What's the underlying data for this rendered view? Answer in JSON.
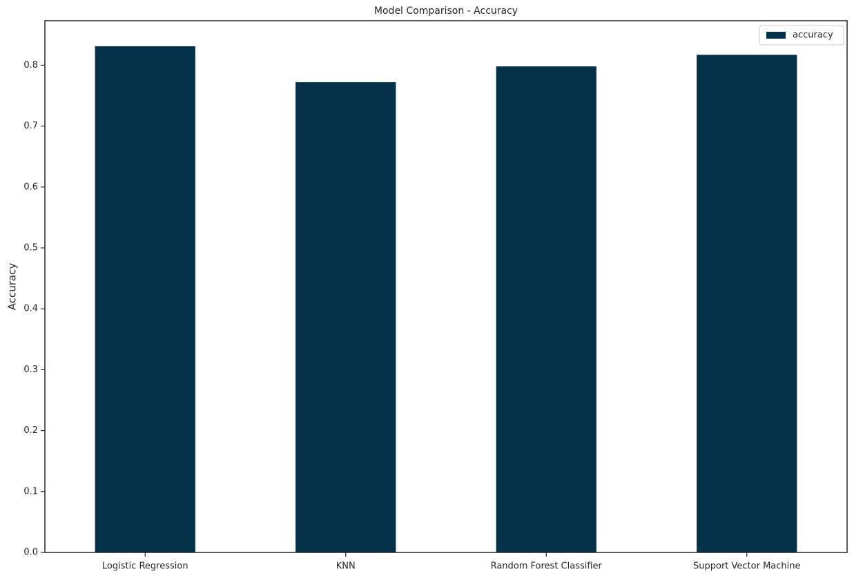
{
  "chart_data": {
    "type": "bar",
    "title": "Model Comparison - Accuracy",
    "y_label": "Accuracy",
    "categories": [
      "Logistic Regression",
      "KNN",
      "Random Forest Classifier",
      "Support Vector Machine"
    ],
    "series": [
      {
        "name": "accuracy",
        "color": "#03314a",
        "values": [
          0.831,
          0.772,
          0.798,
          0.817
        ]
      }
    ],
    "ylim": [
      0,
      0.873
    ],
    "yticks": [
      {
        "value": 0,
        "label": "0.0"
      },
      0.1,
      0.2,
      0.3,
      0.4,
      0.5,
      0.6,
      0.7,
      0.8
    ],
    "legend": "upper right",
    "grid": false
  }
}
